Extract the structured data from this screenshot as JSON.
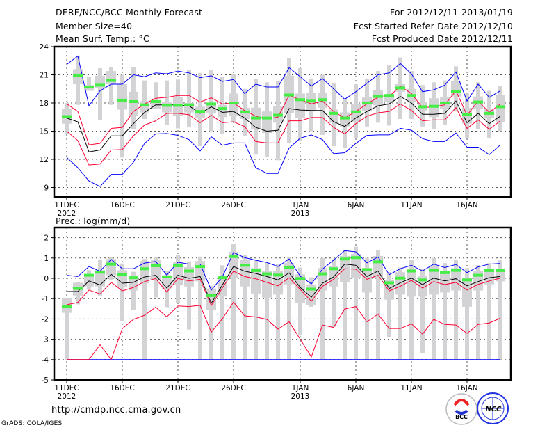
{
  "header": {
    "title": "DERF/NCC/BCC Monthly Forecast",
    "member_size": "Member Size=40",
    "period": "For 2012/12/11-2013/01/19",
    "start_date": "Fcst Started Refer Date 2012/12/10",
    "produced_date": "Fcst Produced Date 2012/12/11"
  },
  "footer": {
    "url": "http://cmdp.ncc.cma.gov.cn",
    "credit": "GrADS: COLA/IGES",
    "logo_bcc": "BCC",
    "logo_ncc": "NCC"
  },
  "colors": {
    "max_min": "#0000ff",
    "spread": "#ff0033",
    "mean": "#000000",
    "median": "#44ee44",
    "box": "#d3d3d6"
  },
  "chart_data": [
    {
      "type": "line",
      "title": "Mean Surf. Temp.: °C",
      "ylim": [
        8,
        24
      ],
      "yticks": [
        9,
        12,
        15,
        18,
        21,
        24
      ],
      "xtick_labels": [
        {
          "day": 0,
          "label": "11DEC",
          "sub": "2012"
        },
        {
          "day": 5,
          "label": "16DEC"
        },
        {
          "day": 10,
          "label": "21DEC"
        },
        {
          "day": 15,
          "label": "26DEC"
        },
        {
          "day": 21,
          "label": "1JAN",
          "sub": "2013"
        },
        {
          "day": 26,
          "label": "6JAN"
        },
        {
          "day": 31,
          "label": "11JAN"
        },
        {
          "day": 36,
          "label": "16JAN"
        }
      ],
      "grid": true,
      "max": [
        22.1,
        23.0,
        17.7,
        19.3,
        20.0,
        20.0,
        21.0,
        20.8,
        21.2,
        21.1,
        21.4,
        21.2,
        20.7,
        20.9,
        20.3,
        20.5,
        19.0,
        20.0,
        19.7,
        19.7,
        21.75,
        20.8,
        19.8,
        20.6,
        19.5,
        18.4,
        19.2,
        20.1,
        21.0,
        21.2,
        22.2,
        21.1,
        19.2,
        19.4,
        19.9,
        21.3,
        18.2,
        20.0,
        18.6,
        19.3
      ],
      "upper": [
        17.9,
        17.1,
        13.55,
        13.7,
        15.3,
        15.4,
        17.1,
        17.9,
        18.5,
        18.6,
        18.8,
        18.8,
        18.1,
        18.55,
        17.9,
        18.0,
        17.2,
        16.6,
        16.3,
        16.5,
        18.8,
        18.35,
        17.9,
        18.2,
        17.1,
        16.4,
        17.1,
        17.9,
        18.6,
        18.7,
        19.8,
        19.0,
        17.5,
        17.6,
        17.8,
        19.3,
        16.7,
        18.2,
        17.0,
        17.9
      ],
      "mean": [
        16.4,
        16.0,
        12.8,
        13.0,
        14.5,
        14.5,
        15.8,
        17.0,
        17.8,
        17.8,
        17.8,
        17.7,
        16.9,
        17.6,
        17.0,
        17.1,
        16.4,
        15.4,
        15.0,
        15.1,
        17.4,
        17.25,
        17.2,
        17.2,
        16.0,
        15.5,
        16.4,
        17.1,
        17.7,
        17.9,
        18.7,
        18.0,
        16.8,
        16.8,
        16.9,
        18.2,
        15.9,
        16.9,
        15.8,
        16.6
      ],
      "lower": [
        15.0,
        14.0,
        11.4,
        11.5,
        13.0,
        13.05,
        14.5,
        15.65,
        16.1,
        16.9,
        16.9,
        16.75,
        15.9,
        16.7,
        15.9,
        16.0,
        15.5,
        13.9,
        13.75,
        13.75,
        16.1,
        16.1,
        16.45,
        16.45,
        15.4,
        14.7,
        15.8,
        16.6,
        16.95,
        17.1,
        17.9,
        17.2,
        16.1,
        16.2,
        16.2,
        17.5,
        15.3,
        16.2,
        15.2,
        16.1
      ],
      "min": [
        12.2,
        11.1,
        9.7,
        9.1,
        10.4,
        10.4,
        11.7,
        13.7,
        14.7,
        14.75,
        14.55,
        14.1,
        12.9,
        14.4,
        13.5,
        13.75,
        13.75,
        11.1,
        10.5,
        10.5,
        13.2,
        14.25,
        14.6,
        14.1,
        12.6,
        12.7,
        13.7,
        14.55,
        14.6,
        14.6,
        15.3,
        15.1,
        14.2,
        13.9,
        13.9,
        14.8,
        13.3,
        13.3,
        12.5,
        13.55
      ],
      "median": [
        16.55,
        20.9,
        19.7,
        19.9,
        20.4,
        18.3,
        18.15,
        17.8,
        18.15,
        17.75,
        17.75,
        17.8,
        17.1,
        17.9,
        17.4,
        18.0,
        17.05,
        16.4,
        16.4,
        16.7,
        18.85,
        18.35,
        18.2,
        18.35,
        16.9,
        16.4,
        17.05,
        18.0,
        18.7,
        18.8,
        19.6,
        18.8,
        17.6,
        17.65,
        18.0,
        19.2,
        16.75,
        18.1,
        16.9,
        17.6
      ],
      "whisker_hi": [
        18.0,
        23.0,
        20.8,
        21.7,
        21.85,
        21.0,
        21.8,
        20.4,
        20.2,
        20.4,
        20.5,
        21.5,
        21.2,
        21.55,
        20.8,
        21.1,
        19.5,
        20.6,
        20.2,
        20.3,
        22.75,
        21.7,
        20.6,
        21.0,
        20.1,
        18.5,
        20.0,
        20.6,
        21.4,
        22.0,
        22.85,
        21.4,
        19.9,
        20.2,
        20.4,
        21.9,
        19.0,
        20.2,
        19.3,
        19.8
      ],
      "whisker_lo": [
        14.75,
        17.8,
        19.3,
        16.2,
        17.8,
        12.2,
        15.2,
        16.3,
        17.4,
        15.7,
        15.3,
        15.4,
        13.4,
        15.0,
        14.7,
        15.9,
        14.5,
        12.5,
        12.3,
        11.9,
        13.7,
        14.0,
        15.0,
        14.6,
        13.4,
        13.25,
        14.3,
        15.5,
        15.9,
        15.6,
        16.3,
        16.3,
        15.5,
        15.25,
        15.7,
        17.1,
        14.3,
        15.2,
        14.3,
        15.0
      ],
      "box_hi": [
        17.4,
        21.6,
        19.9,
        20.9,
        21.4,
        20.0,
        19.2,
        18.2,
        18.2,
        18.1,
        18.6,
        18.0,
        17.6,
        18.0,
        17.8,
        19.0,
        17.5,
        17.5,
        17.1,
        17.7,
        20.9,
        19.0,
        19.1,
        19.1,
        17.3,
        17.0,
        17.9,
        18.6,
        19.4,
        18.85,
        20.0,
        19.5,
        18.1,
        18.5,
        18.6,
        20.3,
        17.5,
        18.7,
        17.4,
        18.85
      ],
      "box_lo": [
        15.8,
        20.0,
        19.3,
        19.6,
        20.0,
        17.3,
        16.6,
        17.0,
        17.4,
        17.0,
        16.6,
        17.0,
        16.4,
        16.9,
        16.5,
        16.6,
        16.3,
        15.2,
        14.8,
        15.9,
        16.9,
        16.4,
        17.1,
        17.5,
        15.9,
        15.5,
        16.0,
        17.1,
        17.75,
        18.1,
        19.2,
        18.1,
        17.2,
        16.5,
        17.4,
        18.7,
        15.8,
        17.4,
        16.4,
        16.0
      ]
    },
    {
      "type": "line",
      "title": "Prec.: log(mm/d)",
      "ylim": [
        -5,
        2.5
      ],
      "yticks": [
        -5,
        -4,
        -3,
        -2,
        -1,
        0,
        1,
        2
      ],
      "xtick_labels": [
        {
          "day": 0,
          "label": "11DEC",
          "sub": "2012"
        },
        {
          "day": 5,
          "label": "16DEC"
        },
        {
          "day": 10,
          "label": "21DEC"
        },
        {
          "day": 15,
          "label": "26DEC"
        },
        {
          "day": 21,
          "label": "1JAN",
          "sub": "2013"
        },
        {
          "day": 26,
          "label": "6JAN"
        },
        {
          "day": 31,
          "label": "11JAN"
        },
        {
          "day": 36,
          "label": "16JAN"
        }
      ],
      "grid": true,
      "max": [
        0.15,
        0.09,
        0.58,
        0.35,
        0.93,
        0.47,
        0.47,
        0.75,
        0.83,
        0.16,
        0.79,
        0.7,
        0.7,
        -0.58,
        0.07,
        1.27,
        1.02,
        0.89,
        0.78,
        0.58,
        0.95,
        0.1,
        -0.27,
        0.45,
        0.9,
        1.36,
        1.3,
        0.76,
        1.05,
        0.18,
        0.47,
        0.64,
        0.36,
        0.7,
        0.53,
        0.68,
        0.28,
        0.56,
        0.7,
        0.73
      ],
      "upper": [
        -1.3,
        -1.19,
        -0.58,
        -0.77,
        -0.2,
        -0.62,
        -0.45,
        -0.16,
        -0.01,
        -0.68,
        -0.01,
        -0.13,
        -0.05,
        -1.34,
        -0.47,
        0.35,
        0.09,
        -0.02,
        -0.2,
        -0.37,
        0.03,
        -0.55,
        -1.13,
        -0.39,
        -0.05,
        0.47,
        0.45,
        -0.05,
        0.15,
        -0.62,
        -0.39,
        -0.1,
        -0.48,
        -0.16,
        -0.31,
        -0.2,
        -0.58,
        -0.3,
        -0.13,
        0.01
      ],
      "mean": [
        -0.65,
        -0.65,
        -0.13,
        -0.33,
        0.2,
        -0.24,
        -0.2,
        0.07,
        0.15,
        -0.48,
        0.15,
        0.0,
        0.09,
        -1.23,
        -0.33,
        0.58,
        0.35,
        0.24,
        0.09,
        -0.08,
        0.27,
        -0.45,
        -0.93,
        -0.24,
        0.07,
        0.7,
        0.64,
        0.09,
        0.36,
        -0.5,
        -0.22,
        0.01,
        -0.31,
        0.01,
        -0.13,
        -0.02,
        -0.37,
        -0.16,
        0.03,
        0.09
      ],
      "lower": [
        -4,
        -4,
        -4,
        -3.27,
        -4,
        -2.48,
        -2.02,
        -1.82,
        -1.42,
        -1.9,
        -1.36,
        -1.39,
        -1.33,
        -2.65,
        -1.99,
        -1.17,
        -1.85,
        -1.9,
        -2.02,
        -2.5,
        -2.14,
        -3.0,
        -3.87,
        -2.3,
        -2.42,
        -1.51,
        -1.39,
        -2.14,
        -1.76,
        -2.47,
        -2.47,
        -2.24,
        -2.75,
        -2.02,
        -2.27,
        -2.3,
        -2.71,
        -2.27,
        -2.2,
        -1.96
      ],
      "min": [
        -4,
        -4,
        -4,
        -4,
        -4,
        -4,
        -4,
        -4,
        -4,
        -4,
        -4,
        -4,
        -4,
        -4,
        -4,
        -4,
        -4,
        -4,
        -4,
        -4,
        -4,
        -4,
        -4,
        -4,
        -4,
        -4,
        -4,
        -4,
        -4,
        -4,
        -4,
        -4,
        -4,
        -4,
        -4,
        -4,
        -4,
        -4,
        -4,
        -4
      ],
      "median": [
        -1.38,
        -0.5,
        0.15,
        0.3,
        0.7,
        0.2,
        0.03,
        0.47,
        0.62,
        0.07,
        0.62,
        0.36,
        0.58,
        -0.85,
        0.03,
        1.07,
        0.64,
        0.38,
        0.22,
        0.16,
        0.55,
        -0.01,
        -0.53,
        0.22,
        0.47,
        0.95,
        1.02,
        0.43,
        0.81,
        -0.22,
        0.01,
        0.36,
        -0.08,
        0.39,
        0.28,
        0.39,
        -0.08,
        0.15,
        0.38,
        0.38
      ],
      "whisker_hi": [
        -0.96,
        -0.2,
        0.4,
        0.93,
        1.05,
        0.73,
        0.32,
        0.95,
        1.05,
        0.38,
        1.13,
        0.83,
        1.07,
        -0.37,
        0.64,
        1.7,
        1.13,
        0.89,
        0.76,
        0.7,
        1.06,
        0.53,
        0.05,
        1.0,
        0.95,
        1.4,
        1.55,
        1.0,
        1.4,
        0.3,
        0.53,
        0.9,
        0.45,
        1.0,
        0.75,
        0.9,
        0.5,
        0.65,
        0.75,
        0.9
      ],
      "whisker_lo": [
        -4,
        -1.28,
        -0.55,
        -0.85,
        -0.08,
        -2.1,
        -1.57,
        -4,
        -0.94,
        -1.42,
        -1.22,
        -2.52,
        -4,
        -4,
        -4,
        -4,
        -4,
        -4,
        -4,
        -4,
        -4,
        -2.8,
        -1.4,
        -4,
        -2.4,
        -4,
        -4,
        -4,
        -4,
        -2.9,
        -4,
        -4,
        -3.7,
        -4,
        -4,
        -4,
        -4,
        -4,
        -4,
        -4
      ],
      "box_hi": [
        -0.96,
        -0.22,
        0.2,
        0.4,
        0.95,
        0.4,
        0.1,
        0.85,
        0.9,
        0.15,
        0.8,
        0.55,
        0.85,
        -0.5,
        0.1,
        1.3,
        0.9,
        0.5,
        0.35,
        0.35,
        0.75,
        0.2,
        -0.3,
        0.5,
        0.6,
        1.1,
        1.2,
        0.5,
        1.1,
        -0.1,
        0.3,
        0.45,
        0.1,
        0.6,
        0.35,
        0.5,
        0.0,
        0.35,
        0.45,
        0.45
      ],
      "box_lo": [
        -1.7,
        -0.85,
        -0.4,
        -0.4,
        0.15,
        -0.45,
        -0.6,
        -0.25,
        -0.1,
        -0.5,
        -0.35,
        -0.4,
        -0.15,
        -1.55,
        -0.9,
        0.0,
        -0.4,
        -0.75,
        -0.95,
        -0.8,
        -0.3,
        -1.2,
        -1.3,
        -0.6,
        -0.4,
        -0.2,
        0.0,
        -0.7,
        0.0,
        -1.05,
        -0.8,
        -0.9,
        -0.9,
        -0.8,
        -0.7,
        -0.6,
        -1.4,
        -0.6,
        -0.3,
        -0.15
      ]
    }
  ]
}
